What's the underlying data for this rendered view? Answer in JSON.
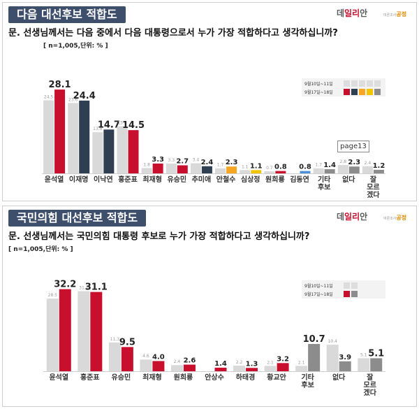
{
  "brand": {
    "name_a": "데",
    "name_r": "일리",
    "name_b": "안",
    "partner_small": "여론조사",
    "partner": "공정"
  },
  "legend": {
    "series1": "9월10일~11일",
    "series2": "9월17일~18일"
  },
  "page_flag": "page13",
  "colors": {
    "prev": "#d9d9d9",
    "title_bg": "#3d4f6b"
  },
  "chart_data": [
    {
      "type": "bar",
      "title": "다음 대선후보 적합도",
      "question": "문. 선생님께서는 다음 중에서 다음 대통령으로서 누가 가장 적합하다고 생각하십니까?",
      "note": "[ n=1,005,단위: % ]",
      "categories": [
        "윤석열",
        "이재명",
        "이낙연",
        "홍준표",
        "최재형",
        "유승민",
        "추미애",
        "안철수",
        "심상정",
        "원희룡",
        "김동연",
        "기타\n후보",
        "없다",
        "잘\n모르\n겠다"
      ],
      "series": [
        {
          "name": "9월10일~11일",
          "values": [
            24.5,
            23.6,
            13.8,
            15.8,
            1.8,
            3.3,
            3.4,
            1.7,
            1.1,
            0.7,
            null,
            1.7,
            2.8,
            2.4
          ]
        },
        {
          "name": "9월17일~18일",
          "values": [
            28.1,
            24.4,
            14.7,
            14.5,
            3.3,
            2.7,
            2.4,
            2.3,
            1.1,
            0.8,
            0.8,
            1.4,
            2.3,
            1.2
          ]
        }
      ],
      "current_colors": [
        "#c8102e",
        "#2f3e51",
        "#2f3e51",
        "#c8102e",
        "#c8102e",
        "#c8102e",
        "#2f3e51",
        "#f5a623",
        "#f2c500",
        "#c8102e",
        "#4a90d9",
        "#8c8c8c",
        "#8c8c8c",
        "#8c8c8c"
      ],
      "legend_swatches": [
        "#c8102e",
        "#2f3e51",
        "#f5a623",
        "#f2c500",
        "#8c8c8c"
      ],
      "ylim": [
        0,
        30
      ]
    },
    {
      "type": "bar",
      "title": "국민의힘 대선후보 적합도",
      "question": "문. 선생님께서는 국민의힘 대통령 후보로 누가 가장 적합하다고 생각하십니까?",
      "note": "[ n=1,005,단위: % ]",
      "categories": [
        "윤석열",
        "홍준표",
        "유승민",
        "최재형",
        "원희룡",
        "안상수",
        "하태경",
        "황교안",
        "기타\n후보",
        "없다",
        "잘\n모르\n겠다"
      ],
      "series": [
        {
          "name": "9월10일~11일",
          "values": [
            28.5,
            31.4,
            11.3,
            4.6,
            2.4,
            null,
            2.2,
            2.1,
            2.1,
            10.4,
            5.1
          ]
        },
        {
          "name": "9월17일~18일",
          "values": [
            32.2,
            31.1,
            9.5,
            4.0,
            2.6,
            1.4,
            1.3,
            3.2,
            10.7,
            3.9,
            5.1
          ]
        }
      ],
      "current_colors": [
        "#c8102e",
        "#c8102e",
        "#c8102e",
        "#c8102e",
        "#c8102e",
        "#c8102e",
        "#c8102e",
        "#c8102e",
        "#8c8c8c",
        "#8c8c8c",
        "#8c8c8c"
      ],
      "legend_swatches": [
        "#c8102e",
        "#8c8c8c"
      ],
      "ylim": [
        0,
        34
      ]
    }
  ]
}
